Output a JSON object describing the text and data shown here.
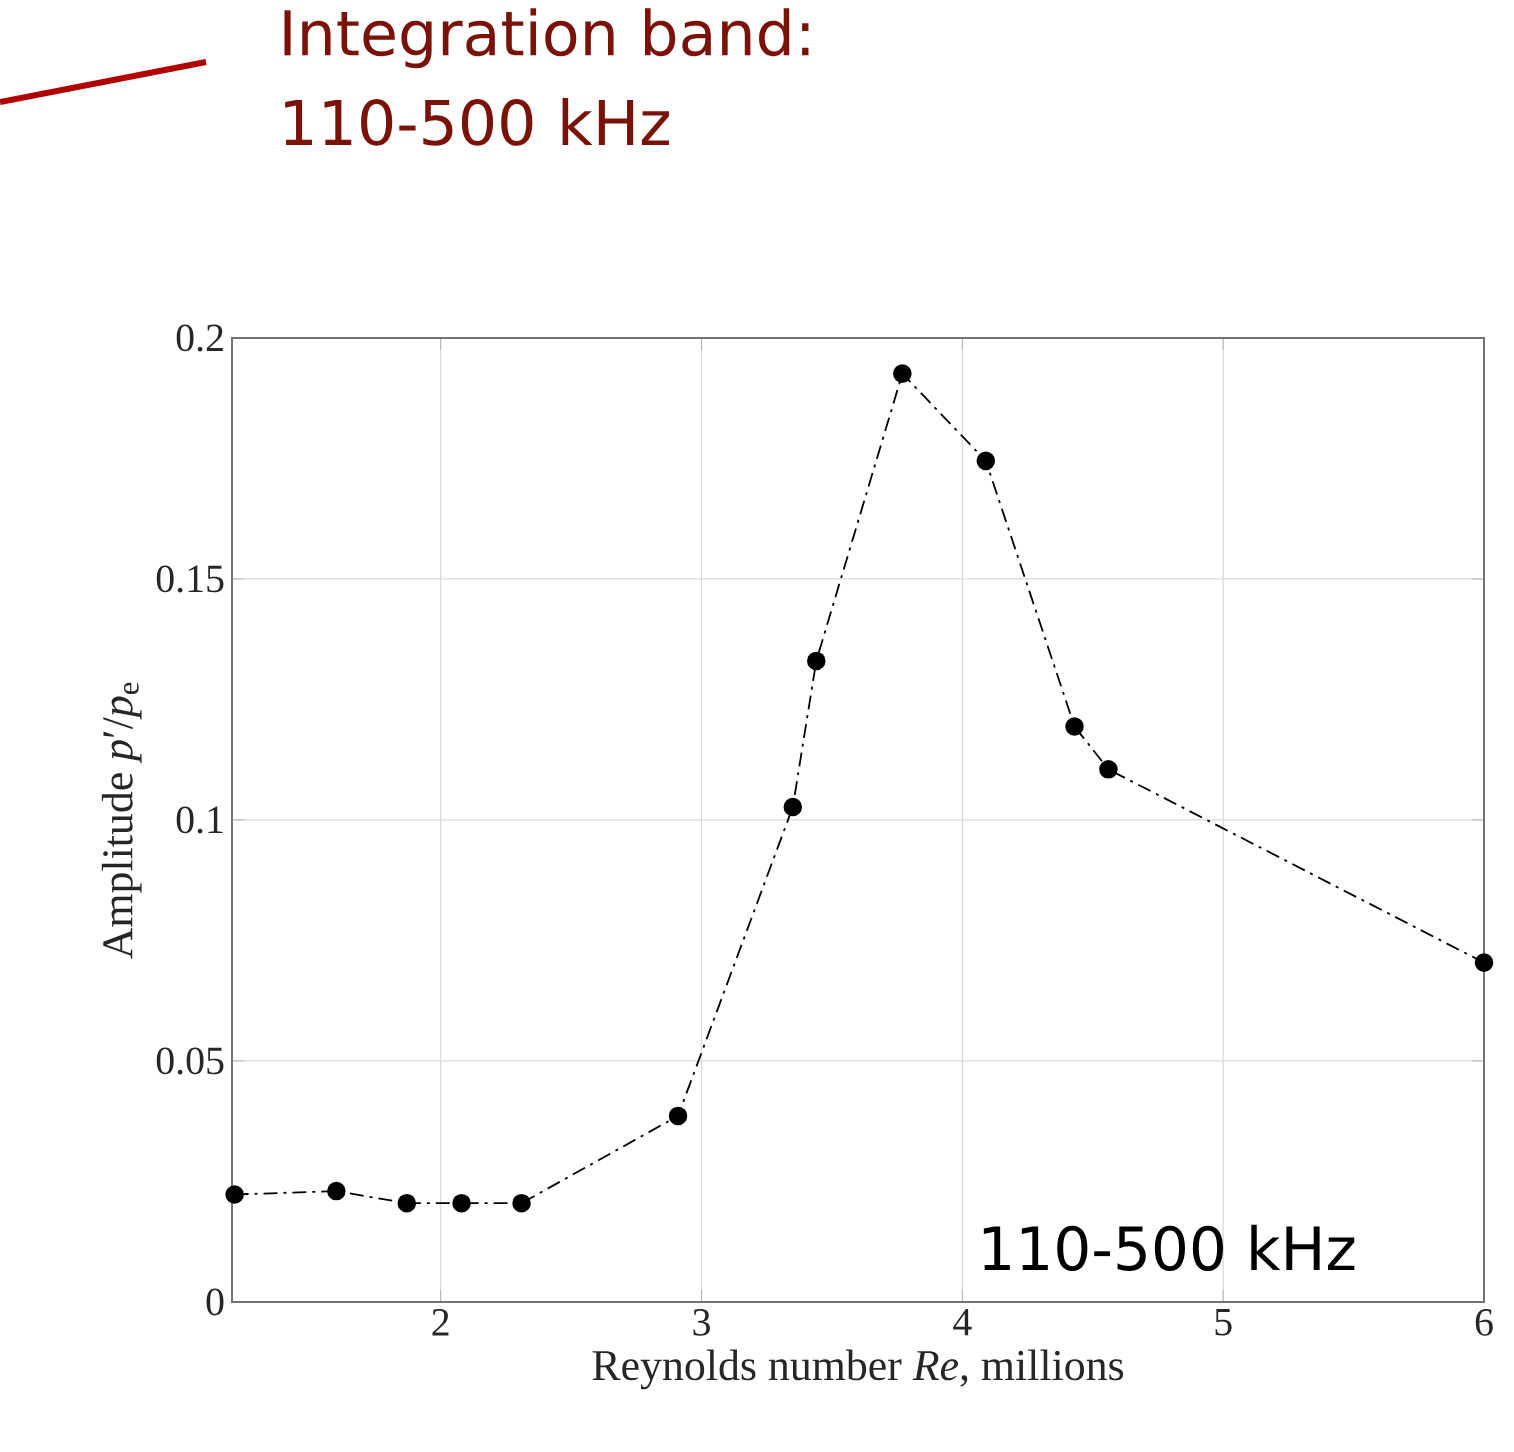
{
  "chart_data": {
    "type": "line",
    "xlabel": "Reynolds number *Re*, millions",
    "ylabel": "Amplitude *p*′/*p*$_{e}$",
    "annotations": [
      "Integration band: 110-500 kHz",
      "110-500 kHz"
    ],
    "x": [
      1.21,
      1.6,
      1.87,
      2.08,
      2.31,
      2.91,
      3.35,
      3.44,
      3.77,
      4.09,
      4.43,
      4.56,
      6.0
    ],
    "series": [
      {
        "color": "#000000",
        "values": [
          0.0223,
          0.023,
          0.0205,
          0.0205,
          0.0205,
          0.0386,
          0.1027,
          0.133,
          0.1926,
          0.1745,
          0.1194,
          0.1105,
          0.0704
        ]
      }
    ],
    "xlim": [
      1.2,
      6
    ],
    "ylim": [
      0,
      0.2
    ],
    "xticks": [
      2,
      3,
      4,
      5,
      6
    ],
    "yticks": [
      0,
      0.05,
      0.1,
      0.15,
      0.2
    ],
    "grid": true,
    "marker": "circle",
    "line_style": "dashed"
  }
}
